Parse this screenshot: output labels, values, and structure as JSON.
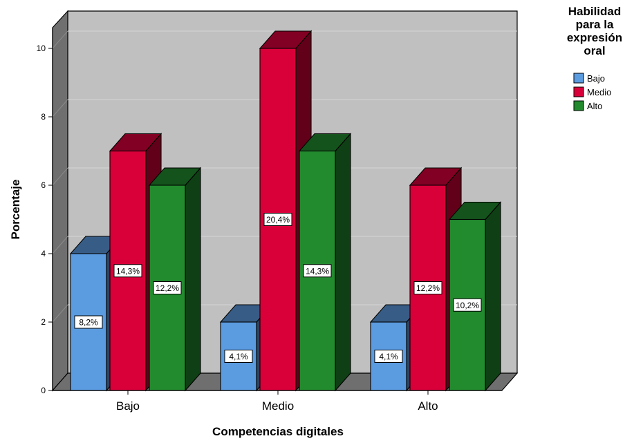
{
  "chart_data": {
    "type": "bar",
    "title": "",
    "xlabel": "Competencias digitales",
    "ylabel": "Porcentaje",
    "ylim": [
      0,
      10
    ],
    "yticks": [
      0,
      2,
      4,
      6,
      8,
      10
    ],
    "grid": true,
    "legend_position": "top-right",
    "legend_title": "Habilidad para la expresión oral",
    "categories": [
      "Bajo",
      "Medio",
      "Alto"
    ],
    "series": [
      {
        "name": "Bajo",
        "color": "#5b9be0",
        "values": [
          4,
          2,
          2
        ],
        "labels": [
          "8,2%",
          "4,1%",
          "4,1%"
        ]
      },
      {
        "name": "Medio",
        "color": "#d9003a",
        "values": [
          7,
          10,
          6
        ],
        "labels": [
          "14,3%",
          "20,4%",
          "12,2%"
        ]
      },
      {
        "name": "Alto",
        "color": "#228b2e",
        "values": [
          6,
          7,
          5
        ],
        "labels": [
          "12,2%",
          "14,3%",
          "10,2%"
        ]
      }
    ]
  }
}
